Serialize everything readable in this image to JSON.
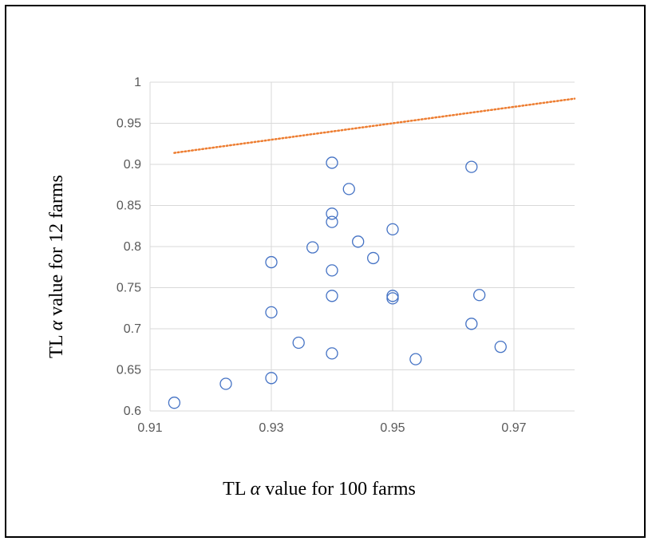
{
  "chart_data": {
    "type": "scatter",
    "title": "",
    "xlabel": {
      "prefix": "TL ",
      "greek": "α",
      "suffix": " value for 100 farms"
    },
    "ylabel": {
      "prefix": "TL ",
      "greek": "α",
      "suffix": " value for 12 farms"
    },
    "xlim": [
      0.91,
      0.98
    ],
    "ylim": [
      0.6,
      1.0
    ],
    "xticks": [
      "0.91",
      "0.93",
      "0.95",
      "0.97"
    ],
    "yticks": [
      "0.6",
      "0.65",
      "0.7",
      "0.75",
      "0.8",
      "0.85",
      "0.9",
      "0.95",
      "1"
    ],
    "grid": true,
    "series": [
      {
        "type": "scatter",
        "marker": "open-circle",
        "color": "#4472C4",
        "points": [
          [
            0.914,
            0.61
          ],
          [
            0.9225,
            0.633
          ],
          [
            0.93,
            0.64
          ],
          [
            0.93,
            0.72
          ],
          [
            0.93,
            0.781
          ],
          [
            0.9345,
            0.683
          ],
          [
            0.9368,
            0.799
          ],
          [
            0.94,
            0.902
          ],
          [
            0.94,
            0.84
          ],
          [
            0.94,
            0.83
          ],
          [
            0.94,
            0.771
          ],
          [
            0.94,
            0.74
          ],
          [
            0.94,
            0.67
          ],
          [
            0.9428,
            0.87
          ],
          [
            0.9443,
            0.806
          ],
          [
            0.9468,
            0.786
          ],
          [
            0.95,
            0.821
          ],
          [
            0.95,
            0.74
          ],
          [
            0.95,
            0.737
          ],
          [
            0.9538,
            0.663
          ],
          [
            0.963,
            0.897
          ],
          [
            0.963,
            0.706
          ],
          [
            0.9643,
            0.741
          ],
          [
            0.9678,
            0.678
          ]
        ]
      },
      {
        "type": "line",
        "style": "dotted",
        "color": "#ED7D31",
        "x": [
          0.914,
          0.98
        ],
        "y": [
          0.914,
          0.98
        ]
      }
    ]
  }
}
